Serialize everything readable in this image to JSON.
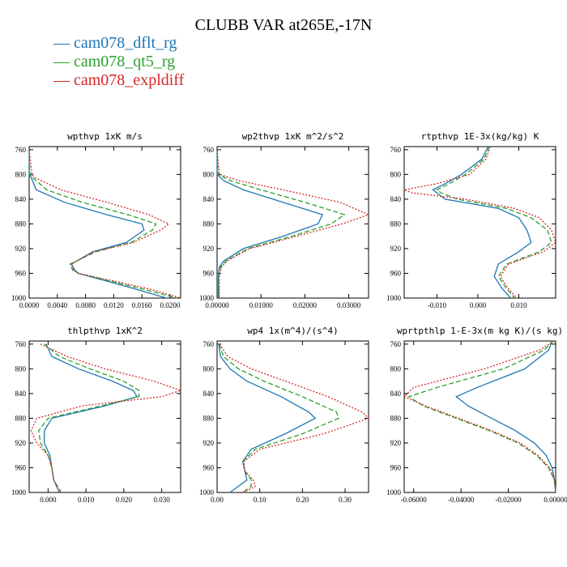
{
  "title": "CLUBB VAR at265E,-17N",
  "legend": [
    {
      "name": "cam078_dflt_rg",
      "color": "#1f77b4",
      "style": "solid"
    },
    {
      "name": "cam078_qt5_rg",
      "color": "#2ca02c",
      "style": "dashed"
    },
    {
      "name": "cam078_expldiff",
      "color": "#d62728",
      "style": "dotted"
    }
  ],
  "chart_data": [
    {
      "type": "line",
      "title": "wpthvp  1xK m/s",
      "xlim": [
        0,
        0.0215
      ],
      "ylim": [
        1000,
        755
      ],
      "xticks": [
        0,
        0.004,
        0.008,
        0.012,
        0.016,
        0.02
      ],
      "xticklabels": [
        "0.0000",
        "0.0040",
        "0.0080",
        "0.0120",
        "0.0160",
        "0.0200"
      ],
      "yticks": [
        760,
        800,
        840,
        880,
        920,
        960,
        1000
      ],
      "y": [
        760,
        800,
        805,
        825,
        845,
        865,
        880,
        890,
        910,
        925,
        945,
        955,
        960,
        985,
        1000
      ],
      "series": [
        {
          "name": "cam078_dflt_rg",
          "x": [
            0,
            0,
            0.0003,
            0.001,
            0.005,
            0.011,
            0.016,
            0.0163,
            0.0138,
            0.009,
            0.006,
            0.0065,
            0.007,
            0.015,
            0.0195
          ]
        },
        {
          "name": "cam078_qt5_rg",
          "x": [
            0,
            0.0001,
            0.0005,
            0.0025,
            0.0075,
            0.014,
            0.018,
            0.0175,
            0.0145,
            0.0095,
            0.0058,
            0.0062,
            0.007,
            0.016,
            0.021
          ]
        },
        {
          "name": "cam078_expldiff",
          "x": [
            0,
            0.0004,
            0.0008,
            0.0045,
            0.011,
            0.017,
            0.0198,
            0.0187,
            0.0148,
            0.0092,
            0.006,
            0.0063,
            0.007,
            0.017,
            0.0215
          ]
        }
      ]
    },
    {
      "type": "line",
      "title": "wp2thvp  1xK m^2/s^2",
      "xlim": [
        0,
        0.0345
      ],
      "ylim": [
        1000,
        755
      ],
      "xticks": [
        0,
        0.01,
        0.02,
        0.03
      ],
      "xticklabels": [
        "0.00000",
        "0.01000",
        "0.02000",
        "0.03000"
      ],
      "yticks": [
        760,
        800,
        840,
        880,
        920,
        960,
        1000
      ],
      "y": [
        760,
        800,
        810,
        825,
        845,
        865,
        880,
        900,
        920,
        940,
        950,
        965,
        1000
      ],
      "series": [
        {
          "name": "cam078_dflt_rg",
          "x": [
            0,
            0,
            0.0015,
            0.006,
            0.015,
            0.024,
            0.023,
            0.015,
            0.006,
            0.0015,
            0.0005,
            0.0003,
            0.0003
          ]
        },
        {
          "name": "cam078_qt5_rg",
          "x": [
            0,
            0.0002,
            0.003,
            0.01,
            0.02,
            0.029,
            0.026,
            0.017,
            0.007,
            0.002,
            0.0008,
            0.0004,
            0.0004
          ]
        },
        {
          "name": "cam078_expldiff",
          "x": [
            0,
            0.0005,
            0.005,
            0.015,
            0.028,
            0.0345,
            0.0285,
            0.018,
            0.0075,
            0.0022,
            0.001,
            0.0005,
            0.0005
          ]
        }
      ]
    },
    {
      "type": "line",
      "title": "rtpthvp  1E-3x(kg/kg) K",
      "xlim": [
        -0.018,
        0.019
      ],
      "ylim": [
        1000,
        755
      ],
      "xticks": [
        -0.01,
        0,
        0.01
      ],
      "xticklabels": [
        "-0.010",
        "0.000",
        "0.010"
      ],
      "yticks": [
        760,
        800,
        840,
        880,
        920,
        960,
        1000
      ],
      "y": [
        755,
        775,
        800,
        815,
        825,
        830,
        840,
        855,
        870,
        890,
        910,
        925,
        945,
        965,
        985,
        1000
      ],
      "series": [
        {
          "name": "cam078_dflt_rg",
          "x": [
            0.0025,
            0.001,
            -0.004,
            -0.008,
            -0.011,
            -0.01,
            -0.008,
            0.005,
            0.01,
            0.012,
            0.013,
            0.01,
            0.005,
            0.004,
            0.006,
            0.008
          ]
        },
        {
          "name": "cam078_qt5_rg",
          "x": [
            0.0028,
            0.0015,
            -0.003,
            -0.007,
            -0.01,
            -0.009,
            -0.005,
            0.007,
            0.013,
            0.017,
            0.018,
            0.015,
            0.007,
            0.005,
            0.007,
            0.009
          ]
        },
        {
          "name": "cam078_expldiff",
          "x": [
            0.003,
            0.002,
            -0.002,
            -0.01,
            -0.018,
            -0.016,
            -0.003,
            0.009,
            0.015,
            0.018,
            0.019,
            0.016,
            0.0075,
            0.0055,
            0.0075,
            0.0095
          ]
        }
      ]
    },
    {
      "type": "line",
      "title": "thlpthvp  1xK^2",
      "xlim": [
        -0.005,
        0.035
      ],
      "ylim": [
        1000,
        755
      ],
      "xticks": [
        0,
        0.01,
        0.02,
        0.03
      ],
      "xticklabels": [
        "0.000",
        "0.010",
        "0.020",
        "0.030"
      ],
      "yticks": [
        760,
        800,
        840,
        880,
        920,
        960,
        1000
      ],
      "y": [
        760,
        780,
        800,
        820,
        835,
        845,
        860,
        880,
        900,
        920,
        940,
        960,
        980,
        1000
      ],
      "series": [
        {
          "name": "cam078_dflt_rg",
          "x": [
            -0.0005,
            0.001,
            0.008,
            0.017,
            0.0225,
            0.0235,
            0.015,
            0.001,
            -0.001,
            -0.001,
            0.0005,
            0.001,
            0.0015,
            0.003
          ]
        },
        {
          "name": "cam078_qt5_rg",
          "x": [
            -0.001,
            0.003,
            0.011,
            0.02,
            0.024,
            0.024,
            0.014,
            0.0,
            -0.0025,
            -0.002,
            0.0,
            0.001,
            0.0015,
            0.0035
          ]
        },
        {
          "name": "cam078_expldiff",
          "x": [
            -0.002,
            0.005,
            0.015,
            0.028,
            0.035,
            0.03,
            0.009,
            -0.003,
            -0.0045,
            -0.003,
            0.0,
            0.001,
            0.0015,
            0.003
          ]
        }
      ]
    },
    {
      "type": "line",
      "title": "wp4  1x(m^4)/(s^4)",
      "xlim": [
        0,
        0.355
      ],
      "ylim": [
        1000,
        755
      ],
      "xticks": [
        0,
        0.1,
        0.2,
        0.3
      ],
      "xticklabels": [
        "0.00",
        "0.10",
        "0.20",
        "0.30"
      ],
      "yticks": [
        760,
        800,
        840,
        880,
        920,
        960,
        1000
      ],
      "y": [
        760,
        780,
        800,
        820,
        845,
        870,
        880,
        905,
        930,
        950,
        965,
        980,
        990,
        1000
      ],
      "series": [
        {
          "name": "cam078_dflt_rg",
          "x": [
            0.004,
            0.008,
            0.03,
            0.07,
            0.15,
            0.215,
            0.23,
            0.16,
            0.08,
            0.06,
            0.065,
            0.07,
            0.05,
            0.03
          ]
        },
        {
          "name": "cam078_qt5_rg",
          "x": [
            0.005,
            0.015,
            0.05,
            0.11,
            0.2,
            0.28,
            0.285,
            0.2,
            0.09,
            0.06,
            0.065,
            0.08,
            0.08,
            0.06
          ]
        },
        {
          "name": "cam078_expldiff",
          "x": [
            0.006,
            0.025,
            0.08,
            0.16,
            0.26,
            0.34,
            0.355,
            0.25,
            0.1,
            0.063,
            0.065,
            0.085,
            0.09,
            0.06
          ]
        }
      ]
    },
    {
      "type": "line",
      "title": "wprtpthlp  1-E-3x(m kg K)/(s kg)",
      "xlim": [
        -0.064,
        0
      ],
      "ylim": [
        1000,
        755
      ],
      "xticks": [
        -0.06,
        -0.04,
        -0.02,
        0
      ],
      "xticklabels": [
        "-0.06000",
        "-0.04000",
        "-0.02000",
        "0.00000"
      ],
      "yticks": [
        760,
        800,
        840,
        880,
        920,
        960,
        1000
      ],
      "y": [
        755,
        770,
        800,
        830,
        845,
        860,
        880,
        900,
        920,
        940,
        960,
        980,
        1000
      ],
      "series": [
        {
          "name": "cam078_dflt_rg",
          "x": [
            -0.0015,
            -0.003,
            -0.013,
            -0.033,
            -0.042,
            -0.037,
            -0.027,
            -0.017,
            -0.009,
            -0.004,
            -0.0015,
            -0.0005,
            0.0
          ]
        },
        {
          "name": "cam078_qt5_rg",
          "x": [
            -0.001,
            -0.005,
            -0.022,
            -0.05,
            -0.062,
            -0.056,
            -0.042,
            -0.028,
            -0.016,
            -0.008,
            -0.003,
            -0.0005,
            0.0
          ]
        },
        {
          "name": "cam078_expldiff",
          "x": [
            -0.0005,
            -0.007,
            -0.03,
            -0.06,
            -0.064,
            -0.055,
            -0.041,
            -0.027,
            -0.015,
            -0.0075,
            -0.0025,
            -0.0005,
            0.0
          ]
        }
      ]
    }
  ]
}
